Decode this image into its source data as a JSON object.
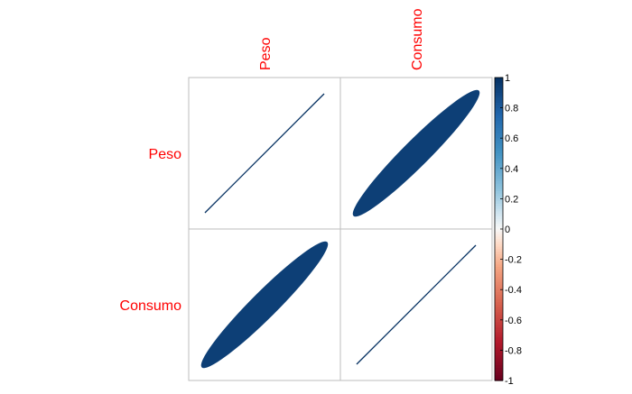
{
  "chart_data": {
    "type": "heatmap",
    "variables": [
      "Peso",
      "Consumo"
    ],
    "matrix": [
      [
        1,
        0.93
      ],
      [
        0.93,
        1
      ]
    ],
    "legend": {
      "min": -1,
      "max": 1,
      "ticks": [
        "1",
        "0.8",
        "0.6",
        "0.4",
        "0.2",
        "0",
        "-0.2",
        "-0.4",
        "-0.6",
        "-0.8",
        "-1"
      ]
    }
  },
  "colors": {
    "label": "#ff0000",
    "grid": "#bebebe",
    "strong_positive": "#053061",
    "neutral": "#f7f7f7",
    "strong_negative": "#67001f"
  }
}
